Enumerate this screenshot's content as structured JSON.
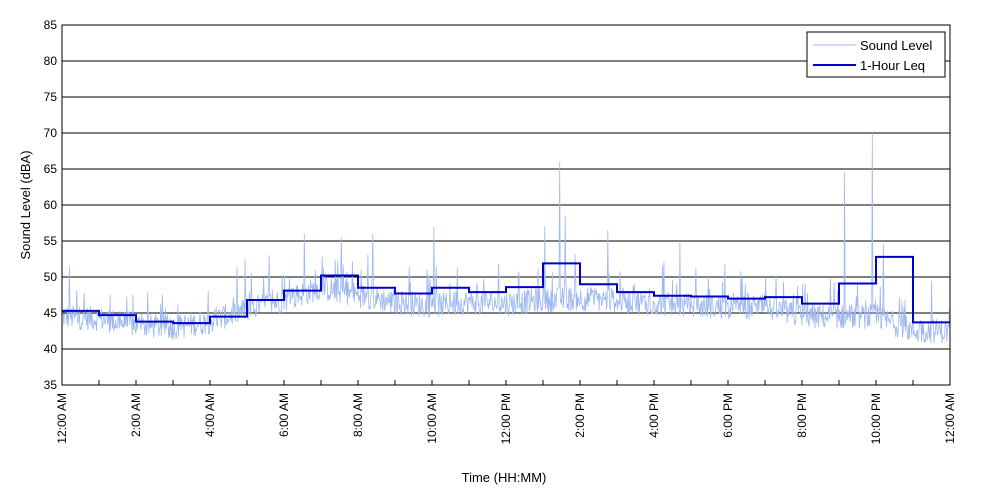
{
  "chart_data": {
    "type": "line",
    "xlabel": "Time (HH:MM)",
    "ylabel": "Sound Level (dBA)",
    "ylim": [
      35,
      85
    ],
    "yticks": [
      35,
      40,
      45,
      50,
      55,
      60,
      65,
      70,
      75,
      80,
      85
    ],
    "xlim_hours": [
      0,
      24
    ],
    "xtick_labels": [
      "12:00 AM",
      "2:00 AM",
      "4:00 AM",
      "6:00 AM",
      "8:00 AM",
      "10:00 AM",
      "12:00 PM",
      "2:00 PM",
      "4:00 PM",
      "6:00 PM",
      "8:00 PM",
      "10:00 PM",
      "12:00 AM"
    ],
    "grid": "horizontal",
    "legend_position": "top-right",
    "series": [
      {
        "name": "Sound Level",
        "color": "#9db8f0",
        "style": "thin",
        "baseline_hourly": [
          44.5,
          44.2,
          43.3,
          43.0,
          43.8,
          45.5,
          46.8,
          48.5,
          47.5,
          46.5,
          46.0,
          46.5,
          46.3,
          46.8,
          47.0,
          46.8,
          46.3,
          46.0,
          45.8,
          45.8,
          44.5,
          44.5,
          44.5,
          42.5
        ],
        "spikes": [
          {
            "x": 0.2,
            "y": 51.5
          },
          {
            "x": 1.3,
            "y": 47.5
          },
          {
            "x": 4.95,
            "y": 52.5
          },
          {
            "x": 5.6,
            "y": 53.0
          },
          {
            "x": 6.55,
            "y": 56.0
          },
          {
            "x": 7.55,
            "y": 55.5
          },
          {
            "x": 8.4,
            "y": 56.0
          },
          {
            "x": 10.05,
            "y": 57.0
          },
          {
            "x": 13.05,
            "y": 57.0
          },
          {
            "x": 13.45,
            "y": 66.0
          },
          {
            "x": 13.6,
            "y": 58.5
          },
          {
            "x": 14.75,
            "y": 56.5
          },
          {
            "x": 16.7,
            "y": 55.0
          },
          {
            "x": 21.15,
            "y": 64.5
          },
          {
            "x": 21.9,
            "y": 70.0
          },
          {
            "x": 22.2,
            "y": 54.5
          },
          {
            "x": 23.5,
            "y": 49.5
          }
        ]
      },
      {
        "name": "1-Hour Leq",
        "color": "#0000cc",
        "style": "step",
        "hourly_leq": [
          45.3,
          44.7,
          43.8,
          43.6,
          44.5,
          46.8,
          48.1,
          50.2,
          48.5,
          47.7,
          48.5,
          47.9,
          48.6,
          51.9,
          49.0,
          47.9,
          47.4,
          47.3,
          47.0,
          47.2,
          46.3,
          49.1,
          52.8,
          43.7
        ]
      }
    ]
  }
}
